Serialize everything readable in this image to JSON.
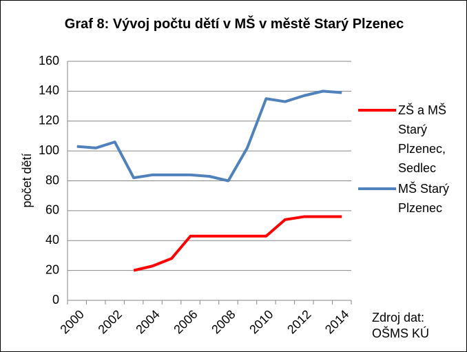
{
  "chart_data": {
    "type": "line",
    "title": "Graf 8: Vývoj počtu dětí v MŠ v městě Starý Plzenec",
    "ylabel": "počet dětí",
    "annotation": "Zdroj dat: OŠMS KÚ",
    "categories": [
      "2000",
      null,
      "2002",
      null,
      "2004",
      null,
      "2006",
      null,
      "2008",
      null,
      "2010",
      null,
      "2012",
      null,
      "2014"
    ],
    "series": [
      {
        "name": "ZŠ a MŠ Starý Plzenec, Sedlec",
        "color": "#ff0000",
        "values": [
          null,
          null,
          null,
          20,
          23,
          28,
          43,
          43,
          43,
          43,
          43,
          54,
          56,
          56,
          56
        ]
      },
      {
        "name": "MŠ Starý Plzenec",
        "color": "#4f81bd",
        "values": [
          103,
          102,
          106,
          82,
          84,
          84,
          84,
          83,
          80,
          102,
          135,
          133,
          137,
          140,
          139
        ]
      }
    ],
    "ylim": [
      0,
      160
    ],
    "yticks": [
      0,
      20,
      40,
      60,
      80,
      100,
      120,
      140,
      160
    ],
    "grid": true,
    "legend": "right"
  }
}
